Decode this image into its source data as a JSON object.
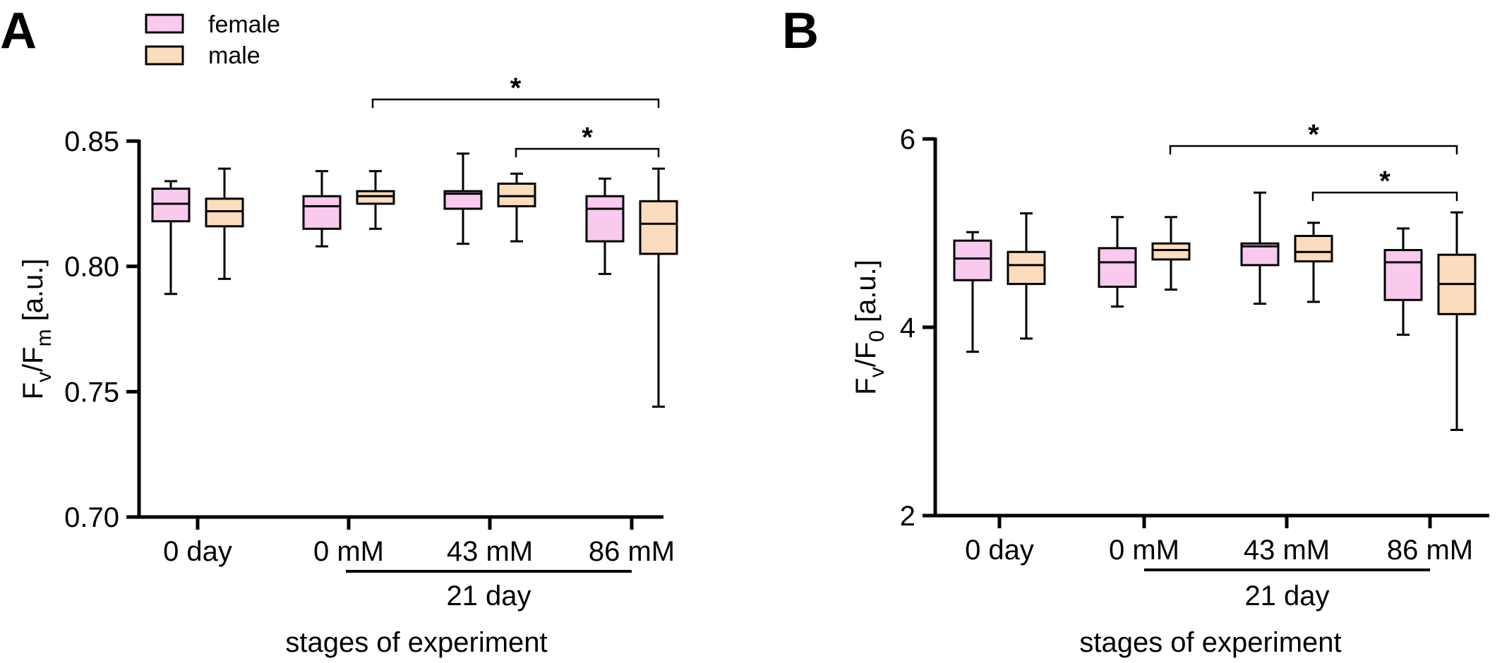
{
  "legend": [
    {
      "label": "female",
      "color": "#f9c9ee"
    },
    {
      "label": "male",
      "color": "#fbdcbc"
    }
  ],
  "group_label": "21 day",
  "chart_data": [
    {
      "type": "box",
      "panel": "A",
      "ylabel": {
        "main": "F",
        "sub1": "v",
        "mid": "/F",
        "sub2": "m",
        "unit": " [a.u.]"
      },
      "xlabel": "stages of experiment",
      "ylim": [
        0.7,
        0.85
      ],
      "yticks": [
        0.7,
        0.75,
        0.8,
        0.85
      ],
      "ytick_labels": [
        "0.70",
        "0.75",
        "0.80",
        "0.85"
      ],
      "categories": [
        "0 day",
        "0 mM",
        "43 mM",
        "86 mM"
      ],
      "series": [
        {
          "name": "female",
          "color": "#f9c9ee",
          "boxes": [
            {
              "min": 0.789,
              "q1": 0.818,
              "median": 0.825,
              "q3": 0.831,
              "max": 0.834
            },
            {
              "min": 0.808,
              "q1": 0.815,
              "median": 0.824,
              "q3": 0.828,
              "max": 0.838
            },
            {
              "min": 0.809,
              "q1": 0.823,
              "median": 0.829,
              "q3": 0.83,
              "max": 0.845
            },
            {
              "min": 0.797,
              "q1": 0.81,
              "median": 0.823,
              "q3": 0.828,
              "max": 0.835
            }
          ]
        },
        {
          "name": "male",
          "color": "#fbdcbc",
          "boxes": [
            {
              "min": 0.795,
              "q1": 0.816,
              "median": 0.822,
              "q3": 0.827,
              "max": 0.839
            },
            {
              "min": 0.815,
              "q1": 0.825,
              "median": 0.828,
              "q3": 0.83,
              "max": 0.838
            },
            {
              "min": 0.81,
              "q1": 0.824,
              "median": 0.828,
              "q3": 0.833,
              "max": 0.837
            },
            {
              "min": 0.744,
              "q1": 0.805,
              "median": 0.817,
              "q3": 0.826,
              "max": 0.839
            }
          ]
        }
      ],
      "significance": [
        {
          "from": "0 mM male",
          "to": "86 mM male",
          "label": "*"
        },
        {
          "from": "43 mM male",
          "to": "86 mM male",
          "label": "*"
        }
      ]
    },
    {
      "type": "box",
      "panel": "B",
      "ylabel": {
        "main": "F",
        "sub1": "v",
        "mid": "/F",
        "sub2": "0",
        "unit": " [a.u.]"
      },
      "xlabel": "stages of experiment",
      "ylim": [
        2,
        6
      ],
      "yticks": [
        2,
        4,
        6
      ],
      "ytick_labels": [
        "2",
        "4",
        "6"
      ],
      "categories": [
        "0 day",
        "0 mM",
        "43 mM",
        "86 mM"
      ],
      "series": [
        {
          "name": "female",
          "color": "#f9c9ee",
          "boxes": [
            {
              "min": 3.74,
              "q1": 4.5,
              "median": 4.73,
              "q3": 4.92,
              "max": 5.01
            },
            {
              "min": 4.22,
              "q1": 4.43,
              "median": 4.69,
              "q3": 4.84,
              "max": 5.17
            },
            {
              "min": 4.25,
              "q1": 4.66,
              "median": 4.86,
              "q3": 4.89,
              "max": 5.43
            },
            {
              "min": 3.92,
              "q1": 4.29,
              "median": 4.69,
              "q3": 4.82,
              "max": 5.05
            }
          ]
        },
        {
          "name": "male",
          "color": "#fbdcbc",
          "boxes": [
            {
              "min": 3.88,
              "q1": 4.46,
              "median": 4.66,
              "q3": 4.8,
              "max": 5.21
            },
            {
              "min": 4.4,
              "q1": 4.72,
              "median": 4.82,
              "q3": 4.89,
              "max": 5.17
            },
            {
              "min": 4.27,
              "q1": 4.7,
              "median": 4.8,
              "q3": 4.97,
              "max": 5.11
            },
            {
              "min": 2.91,
              "q1": 4.14,
              "median": 4.46,
              "q3": 4.77,
              "max": 5.22
            }
          ]
        }
      ],
      "significance": [
        {
          "from": "0 mM male",
          "to": "86 mM male",
          "label": "*"
        },
        {
          "from": "43 mM male",
          "to": "86 mM male",
          "label": "*"
        }
      ]
    }
  ]
}
